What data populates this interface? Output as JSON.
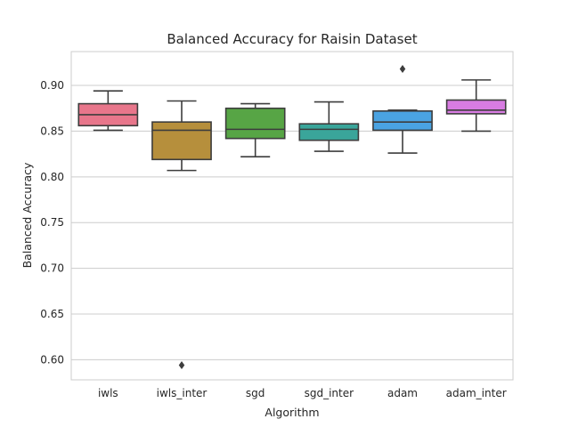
{
  "chart_data": {
    "type": "box",
    "title": "Balanced Accuracy for Raisin Dataset",
    "xlabel": "Algorithm",
    "ylabel": "Balanced Accuracy",
    "ylim": [
      0.578,
      0.937
    ],
    "yticks": [
      0.6,
      0.65,
      0.7,
      0.75,
      0.8,
      0.85,
      0.9
    ],
    "ytick_labels": [
      "0.60",
      "0.65",
      "0.70",
      "0.75",
      "0.80",
      "0.85",
      "0.90"
    ],
    "grid": true,
    "categories": [
      "iwls",
      "iwls_inter",
      "sgd",
      "sgd_inter",
      "adam",
      "adam_inter"
    ],
    "series": [
      {
        "category": "iwls",
        "color": "#e8768b",
        "whisker_low": 0.851,
        "q1": 0.856,
        "median": 0.868,
        "q3": 0.88,
        "whisker_high": 0.894,
        "outliers": []
      },
      {
        "category": "iwls_inter",
        "color": "#b68f3c",
        "whisker_low": 0.807,
        "q1": 0.819,
        "median": 0.851,
        "q3": 0.86,
        "whisker_high": 0.883,
        "outliers": [
          0.594
        ]
      },
      {
        "category": "sgd",
        "color": "#57a545",
        "whisker_low": 0.822,
        "q1": 0.842,
        "median": 0.852,
        "q3": 0.875,
        "whisker_high": 0.88,
        "outliers": []
      },
      {
        "category": "sgd_inter",
        "color": "#3aa59a",
        "whisker_low": 0.828,
        "q1": 0.84,
        "median": 0.852,
        "q3": 0.858,
        "whisker_high": 0.882,
        "outliers": []
      },
      {
        "category": "adam",
        "color": "#4aa3e2",
        "whisker_low": 0.826,
        "q1": 0.851,
        "median": 0.86,
        "q3": 0.872,
        "whisker_high": 0.873,
        "outliers": [
          0.918
        ]
      },
      {
        "category": "adam_inter",
        "color": "#d87ce2",
        "whisker_low": 0.85,
        "q1": 0.869,
        "median": 0.873,
        "q3": 0.884,
        "whisker_high": 0.906,
        "outliers": []
      }
    ]
  }
}
